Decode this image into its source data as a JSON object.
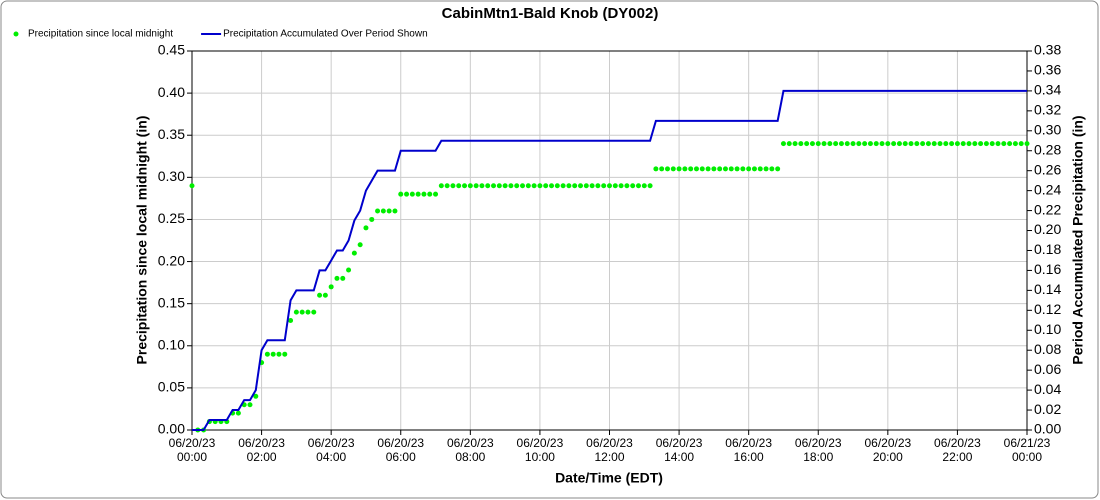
{
  "chart_data": {
    "type": "line",
    "title": "CabinMtn1-Bald Knob (DY002)",
    "x_label": "Date/Time (EDT)",
    "y_label": "Precipitation since local midnight (in)",
    "y2_label": "Period Accumulated Precipitation (in)",
    "legend": "top-left",
    "grid": true,
    "x": [
      0,
      10,
      20,
      30,
      40,
      50,
      60,
      70,
      80,
      90,
      100,
      110,
      120,
      130,
      140,
      150,
      160,
      170,
      180,
      190,
      200,
      210,
      220,
      230,
      240,
      250,
      260,
      270,
      280,
      290,
      300,
      310,
      320,
      330,
      340,
      350,
      360,
      370,
      380,
      390,
      400,
      410,
      420,
      430,
      440,
      450,
      460,
      470,
      480,
      490,
      500,
      510,
      520,
      530,
      540,
      550,
      560,
      570,
      580,
      590,
      600,
      610,
      620,
      630,
      640,
      650,
      660,
      670,
      680,
      690,
      700,
      710,
      720,
      730,
      740,
      750,
      760,
      770,
      780,
      790,
      800,
      810,
      820,
      830,
      840,
      850,
      860,
      870,
      880,
      890,
      900,
      910,
      920,
      930,
      940,
      950,
      960,
      970,
      980,
      990,
      1000,
      1010,
      1020,
      1030,
      1040,
      1050,
      1060,
      1070,
      1080,
      1090,
      1100,
      1110,
      1120,
      1130,
      1140,
      1150,
      1160,
      1170,
      1180,
      1190,
      1200,
      1210,
      1220,
      1230,
      1240,
      1250,
      1260,
      1270,
      1280,
      1290,
      1300,
      1310,
      1320,
      1330,
      1340,
      1350,
      1360,
      1370,
      1380,
      1390,
      1400,
      1410,
      1420,
      1430,
      1440
    ],
    "xlim": [
      0,
      1440
    ],
    "xticks": [
      {
        "value": 0,
        "label": "06/20/23\n00:00"
      },
      {
        "value": 120,
        "label": "06/20/23\n02:00"
      },
      {
        "value": 240,
        "label": "06/20/23\n04:00"
      },
      {
        "value": 360,
        "label": "06/20/23\n06:00"
      },
      {
        "value": 480,
        "label": "06/20/23\n08:00"
      },
      {
        "value": 600,
        "label": "06/20/23\n10:00"
      },
      {
        "value": 720,
        "label": "06/20/23\n12:00"
      },
      {
        "value": 840,
        "label": "06/20/23\n14:00"
      },
      {
        "value": 960,
        "label": "06/20/23\n16:00"
      },
      {
        "value": 1080,
        "label": "06/20/23\n18:00"
      },
      {
        "value": 1200,
        "label": "06/20/23\n20:00"
      },
      {
        "value": 1320,
        "label": "06/20/23\n22:00"
      },
      {
        "value": 1440,
        "label": "06/21/23\n00:00"
      }
    ],
    "ylim": [
      0,
      0.45
    ],
    "yticks": [
      {
        "value": 0,
        "label": "0.00"
      },
      {
        "value": 0.05,
        "label": "0.05"
      },
      {
        "value": 0.1,
        "label": "0.10"
      },
      {
        "value": 0.15,
        "label": "0.15"
      },
      {
        "value": 0.2,
        "label": "0.20"
      },
      {
        "value": 0.25,
        "label": "0.25"
      },
      {
        "value": 0.3,
        "label": "0.30"
      },
      {
        "value": 0.35,
        "label": "0.35"
      },
      {
        "value": 0.4,
        "label": "0.40"
      },
      {
        "value": 0.45,
        "label": "0.45"
      }
    ],
    "y2lim": [
      0,
      0.38
    ],
    "y2ticks": [
      {
        "value": 0,
        "label": "0.00"
      },
      {
        "value": 0.02,
        "label": "0.02"
      },
      {
        "value": 0.04,
        "label": "0.04"
      },
      {
        "value": 0.06,
        "label": "0.06"
      },
      {
        "value": 0.08,
        "label": "0.08"
      },
      {
        "value": 0.1,
        "label": "0.10"
      },
      {
        "value": 0.12,
        "label": "0.12"
      },
      {
        "value": 0.14,
        "label": "0.14"
      },
      {
        "value": 0.16,
        "label": "0.16"
      },
      {
        "value": 0.18,
        "label": "0.18"
      },
      {
        "value": 0.2,
        "label": "0.20"
      },
      {
        "value": 0.22,
        "label": "0.22"
      },
      {
        "value": 0.24,
        "label": "0.24"
      },
      {
        "value": 0.26,
        "label": "0.26"
      },
      {
        "value": 0.28,
        "label": "0.28"
      },
      {
        "value": 0.3,
        "label": "0.30"
      },
      {
        "value": 0.32,
        "label": "0.32"
      },
      {
        "value": 0.34,
        "label": "0.34"
      },
      {
        "value": 0.36,
        "label": "0.36"
      },
      {
        "value": 0.38,
        "label": "0.38"
      }
    ],
    "series": [
      {
        "name": "Precipitation since local midnight",
        "color": "#00ee00",
        "style": "dots",
        "axis": "y",
        "values": [
          0.29,
          0,
          0,
          0.01,
          0.01,
          0.01,
          0.01,
          0.02,
          0.02,
          0.03,
          0.03,
          0.04,
          0.08,
          0.09,
          0.09,
          0.09,
          0.09,
          0.13,
          0.14,
          0.14,
          0.14,
          0.14,
          0.16,
          0.16,
          0.17,
          0.18,
          0.18,
          0.19,
          0.21,
          0.22,
          0.24,
          0.25,
          0.26,
          0.26,
          0.26,
          0.26,
          0.28,
          0.28,
          0.28,
          0.28,
          0.28,
          0.28,
          0.28,
          0.29,
          0.29,
          0.29,
          0.29,
          0.29,
          0.29,
          0.29,
          0.29,
          0.29,
          0.29,
          0.29,
          0.29,
          0.29,
          0.29,
          0.29,
          0.29,
          0.29,
          0.29,
          0.29,
          0.29,
          0.29,
          0.29,
          0.29,
          0.29,
          0.29,
          0.29,
          0.29,
          0.29,
          0.29,
          0.29,
          0.29,
          0.29,
          0.29,
          0.29,
          0.29,
          0.29,
          0.29,
          0.31,
          0.31,
          0.31,
          0.31,
          0.31,
          0.31,
          0.31,
          0.31,
          0.31,
          0.31,
          0.31,
          0.31,
          0.31,
          0.31,
          0.31,
          0.31,
          0.31,
          0.31,
          0.31,
          0.31,
          0.31,
          0.31,
          0.34,
          0.34,
          0.34,
          0.34,
          0.34,
          0.34,
          0.34,
          0.34,
          0.34,
          0.34,
          0.34,
          0.34,
          0.34,
          0.34,
          0.34,
          0.34,
          0.34,
          0.34,
          0.34,
          0.34,
          0.34,
          0.34,
          0.34,
          0.34,
          0.34,
          0.34,
          0.34,
          0.34,
          0.34,
          0.34,
          0.34,
          0.34,
          0.34,
          0.34,
          0.34,
          0.34,
          0.34,
          0.34,
          0.34,
          0.34,
          0.34,
          0.34,
          0.34
        ]
      },
      {
        "name": "Precipitation Accumulated Over Period Shown",
        "color": "#0000cc",
        "style": "line",
        "axis": "y2",
        "values": [
          0,
          0,
          0,
          0.01,
          0.01,
          0.01,
          0.01,
          0.02,
          0.02,
          0.03,
          0.03,
          0.04,
          0.08,
          0.09,
          0.09,
          0.09,
          0.09,
          0.13,
          0.14,
          0.14,
          0.14,
          0.14,
          0.16,
          0.16,
          0.17,
          0.18,
          0.18,
          0.19,
          0.21,
          0.22,
          0.24,
          0.25,
          0.26,
          0.26,
          0.26,
          0.26,
          0.28,
          0.28,
          0.28,
          0.28,
          0.28,
          0.28,
          0.28,
          0.29,
          0.29,
          0.29,
          0.29,
          0.29,
          0.29,
          0.29,
          0.29,
          0.29,
          0.29,
          0.29,
          0.29,
          0.29,
          0.29,
          0.29,
          0.29,
          0.29,
          0.29,
          0.29,
          0.29,
          0.29,
          0.29,
          0.29,
          0.29,
          0.29,
          0.29,
          0.29,
          0.29,
          0.29,
          0.29,
          0.29,
          0.29,
          0.29,
          0.29,
          0.29,
          0.29,
          0.29,
          0.31,
          0.31,
          0.31,
          0.31,
          0.31,
          0.31,
          0.31,
          0.31,
          0.31,
          0.31,
          0.31,
          0.31,
          0.31,
          0.31,
          0.31,
          0.31,
          0.31,
          0.31,
          0.31,
          0.31,
          0.31,
          0.31,
          0.34,
          0.34,
          0.34,
          0.34,
          0.34,
          0.34,
          0.34,
          0.34,
          0.34,
          0.34,
          0.34,
          0.34,
          0.34,
          0.34,
          0.34,
          0.34,
          0.34,
          0.34,
          0.34,
          0.34,
          0.34,
          0.34,
          0.34,
          0.34,
          0.34,
          0.34,
          0.34,
          0.34,
          0.34,
          0.34,
          0.34,
          0.34,
          0.34,
          0.34,
          0.34,
          0.34,
          0.34,
          0.34,
          0.34,
          0.34,
          0.34,
          0.34,
          0.34
        ]
      }
    ]
  }
}
